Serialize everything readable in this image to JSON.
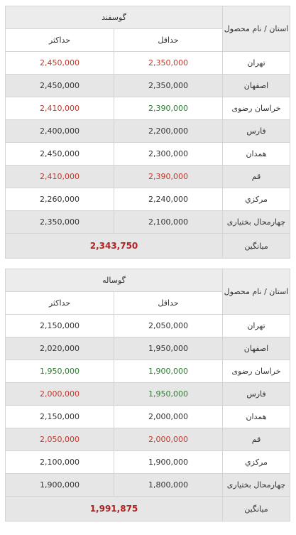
{
  "province_header": "استان / نام محصول",
  "avg_label": "میانگین",
  "col_min": "حداقل",
  "col_max": "حداکثر",
  "tables": [
    {
      "title": "گوسفند",
      "average": "2,343,750",
      "rows": [
        {
          "province": "تهران",
          "min": "2,350,000",
          "max": "2,450,000",
          "min_color": "red",
          "max_color": "red"
        },
        {
          "province": "اصفهان",
          "min": "2,350,000",
          "max": "2,450,000",
          "min_color": "plain",
          "max_color": "plain"
        },
        {
          "province": "خراسان رضوی",
          "min": "2,390,000",
          "max": "2,410,000",
          "min_color": "green",
          "max_color": "red"
        },
        {
          "province": "فارس",
          "min": "2,200,000",
          "max": "2,400,000",
          "min_color": "plain",
          "max_color": "plain"
        },
        {
          "province": "همدان",
          "min": "2,300,000",
          "max": "2,450,000",
          "min_color": "plain",
          "max_color": "plain"
        },
        {
          "province": "قم",
          "min": "2,390,000",
          "max": "2,410,000",
          "min_color": "red",
          "max_color": "red"
        },
        {
          "province": "مرکزي",
          "min": "2,240,000",
          "max": "2,260,000",
          "min_color": "plain",
          "max_color": "plain"
        },
        {
          "province": "چهارمحال بختیاری",
          "min": "2,100,000",
          "max": "2,350,000",
          "min_color": "plain",
          "max_color": "plain"
        }
      ]
    },
    {
      "title": "گوساله",
      "average": "1,991,875",
      "rows": [
        {
          "province": "تهران",
          "min": "2,050,000",
          "max": "2,150,000",
          "min_color": "plain",
          "max_color": "plain"
        },
        {
          "province": "اصفهان",
          "min": "1,950,000",
          "max": "2,020,000",
          "min_color": "plain",
          "max_color": "plain"
        },
        {
          "province": "خراسان رضوی",
          "min": "1,900,000",
          "max": "1,950,000",
          "min_color": "green",
          "max_color": "green"
        },
        {
          "province": "فارس",
          "min": "1,950,000",
          "max": "2,000,000",
          "min_color": "green",
          "max_color": "red"
        },
        {
          "province": "همدان",
          "min": "2,000,000",
          "max": "2,150,000",
          "min_color": "plain",
          "max_color": "plain"
        },
        {
          "province": "قم",
          "min": "2,000,000",
          "max": "2,050,000",
          "min_color": "red",
          "max_color": "red"
        },
        {
          "province": "مرکزي",
          "min": "1,900,000",
          "max": "2,100,000",
          "min_color": "plain",
          "max_color": "plain"
        },
        {
          "province": "چهارمحال بختیاری",
          "min": "1,800,000",
          "max": "1,900,000",
          "min_color": "plain",
          "max_color": "plain"
        }
      ]
    }
  ]
}
